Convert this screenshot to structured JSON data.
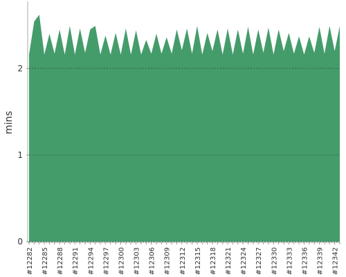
{
  "chart_data": {
    "type": "area",
    "y_label": "mins",
    "color": "#459c6b",
    "categories": [
      "#12282",
      null,
      null,
      "#12285",
      null,
      null,
      "#12288",
      null,
      null,
      "#12291",
      null,
      null,
      "#12294",
      null,
      null,
      "#12297",
      null,
      null,
      "#12300",
      null,
      null,
      "#12303",
      null,
      null,
      "#12306",
      null,
      null,
      "#12309",
      null,
      null,
      "#12312",
      null,
      null,
      "#12315",
      null,
      null,
      "#12318",
      null,
      null,
      "#12321",
      null,
      null,
      "#12324",
      null,
      null,
      "#12327",
      null,
      null,
      "#12330",
      null,
      null,
      "#12333",
      null,
      null,
      "#12336",
      null,
      null,
      "#12339",
      null,
      null,
      "#12342",
      null
    ],
    "values": [
      2.16,
      2.54,
      2.62,
      2.16,
      2.4,
      2.17,
      2.45,
      2.16,
      2.49,
      2.16,
      2.46,
      2.18,
      2.45,
      2.49,
      2.16,
      2.38,
      2.16,
      2.41,
      2.16,
      2.46,
      2.16,
      2.44,
      2.16,
      2.33,
      2.17,
      2.4,
      2.17,
      2.36,
      2.17,
      2.45,
      2.21,
      2.46,
      2.17,
      2.49,
      2.16,
      2.41,
      2.2,
      2.45,
      2.16,
      2.46,
      2.16,
      2.45,
      2.17,
      2.48,
      2.16,
      2.45,
      2.18,
      2.47,
      2.16,
      2.45,
      2.2,
      2.41,
      2.17,
      2.37,
      2.16,
      2.37,
      2.18,
      2.48,
      2.17,
      2.49,
      2.2,
      2.49
    ],
    "ylim": [
      0,
      2.75
    ],
    "yticks": [
      0,
      1,
      2
    ],
    "grid": true
  }
}
